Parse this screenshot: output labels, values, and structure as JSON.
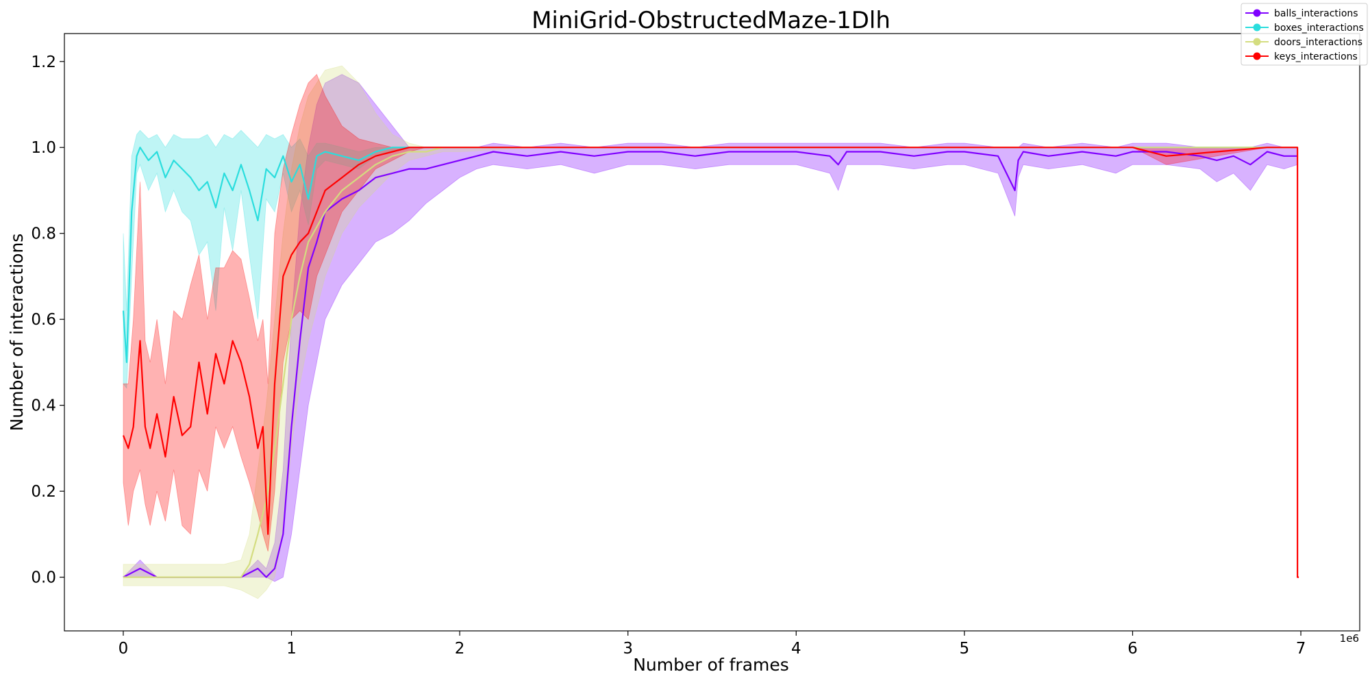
{
  "chart_data": {
    "type": "line",
    "title": "MiniGrid-ObstructedMaze-1Dlh",
    "xlabel": "Number of frames",
    "ylabel": "Number of interactions",
    "x_offset_text": "1e6",
    "xlim": [
      -0.35,
      7.35
    ],
    "ylim": [
      -0.125,
      1.265
    ],
    "x_ticks": [
      0,
      1,
      2,
      3,
      4,
      5,
      6,
      7
    ],
    "x_tick_labels": [
      "0",
      "1",
      "2",
      "3",
      "4",
      "5",
      "6",
      "7"
    ],
    "y_ticks": [
      0.0,
      0.2,
      0.4,
      0.6,
      0.8,
      1.0,
      1.2
    ],
    "y_tick_labels": [
      "0.0",
      "0.2",
      "0.4",
      "0.6",
      "0.8",
      "1.0",
      "1.2"
    ],
    "x_scale_note": "x values in units of 1e6 frames",
    "legend_position": "top-right",
    "grid": false,
    "series": [
      {
        "name": "balls_interactions",
        "color": "#7f00ff",
        "x": [
          0,
          0.05,
          0.1,
          0.2,
          0.3,
          0.4,
          0.5,
          0.6,
          0.7,
          0.8,
          0.85,
          0.9,
          0.95,
          1.0,
          1.05,
          1.1,
          1.15,
          1.2,
          1.3,
          1.4,
          1.5,
          1.6,
          1.7,
          1.8,
          1.9,
          2.0,
          2.1,
          2.2,
          2.4,
          2.6,
          2.8,
          3.0,
          3.2,
          3.4,
          3.6,
          3.8,
          4.0,
          4.2,
          4.25,
          4.3,
          4.5,
          4.7,
          4.9,
          5.0,
          5.2,
          5.3,
          5.32,
          5.35,
          5.5,
          5.7,
          5.9,
          6.0,
          6.2,
          6.4,
          6.5,
          6.6,
          6.7,
          6.8,
          6.9,
          6.98
        ],
        "y": [
          0.0,
          0.01,
          0.02,
          0.0,
          0.0,
          0.0,
          0.0,
          0.0,
          0.0,
          0.02,
          0.0,
          0.02,
          0.1,
          0.35,
          0.55,
          0.72,
          0.78,
          0.85,
          0.88,
          0.9,
          0.93,
          0.94,
          0.95,
          0.95,
          0.96,
          0.97,
          0.98,
          0.99,
          0.98,
          0.99,
          0.98,
          0.99,
          0.99,
          0.98,
          0.99,
          0.99,
          0.99,
          0.98,
          0.96,
          0.99,
          0.99,
          0.98,
          0.99,
          0.99,
          0.98,
          0.9,
          0.97,
          0.99,
          0.98,
          0.99,
          0.98,
          0.99,
          0.99,
          0.98,
          0.97,
          0.98,
          0.96,
          0.99,
          0.98,
          0.98
        ],
        "lower": [
          0.0,
          0.0,
          0.0,
          0.0,
          0.0,
          0.0,
          0.0,
          0.0,
          0.0,
          0.0,
          0.0,
          -0.01,
          0.0,
          0.1,
          0.25,
          0.4,
          0.5,
          0.6,
          0.68,
          0.73,
          0.78,
          0.8,
          0.83,
          0.87,
          0.9,
          0.93,
          0.95,
          0.96,
          0.95,
          0.96,
          0.94,
          0.96,
          0.96,
          0.95,
          0.96,
          0.96,
          0.96,
          0.94,
          0.9,
          0.96,
          0.96,
          0.95,
          0.96,
          0.96,
          0.94,
          0.84,
          0.93,
          0.96,
          0.95,
          0.96,
          0.94,
          0.96,
          0.96,
          0.95,
          0.92,
          0.94,
          0.9,
          0.96,
          0.95,
          0.96
        ],
        "upper": [
          0.0,
          0.02,
          0.04,
          0.0,
          0.0,
          0.0,
          0.0,
          0.0,
          0.0,
          0.04,
          0.02,
          0.08,
          0.25,
          0.6,
          0.85,
          1.0,
          1.1,
          1.15,
          1.17,
          1.15,
          1.1,
          1.05,
          1.0,
          1.0,
          1.0,
          1.0,
          1.0,
          1.01,
          1.0,
          1.01,
          1.0,
          1.01,
          1.01,
          1.0,
          1.01,
          1.01,
          1.01,
          1.01,
          1.01,
          1.01,
          1.01,
          1.0,
          1.01,
          1.01,
          1.0,
          1.0,
          1.0,
          1.01,
          1.0,
          1.01,
          1.0,
          1.01,
          1.01,
          1.0,
          1.0,
          1.0,
          1.0,
          1.01,
          1.0,
          1.0
        ]
      },
      {
        "name": "boxes_interactions",
        "color": "#2adddd",
        "x": [
          0,
          0.02,
          0.05,
          0.08,
          0.1,
          0.15,
          0.2,
          0.25,
          0.3,
          0.35,
          0.4,
          0.45,
          0.5,
          0.55,
          0.6,
          0.65,
          0.7,
          0.75,
          0.8,
          0.85,
          0.9,
          0.95,
          1.0,
          1.05,
          1.1,
          1.15,
          1.2,
          1.3,
          1.4,
          1.5,
          1.6,
          1.7,
          1.8,
          1.9,
          2.0,
          2.5,
          3.0,
          4.0,
          5.0,
          6.0,
          6.98
        ],
        "y": [
          0.62,
          0.5,
          0.85,
          0.98,
          1.0,
          0.97,
          0.99,
          0.93,
          0.97,
          0.95,
          0.93,
          0.9,
          0.92,
          0.86,
          0.94,
          0.9,
          0.96,
          0.9,
          0.83,
          0.95,
          0.93,
          0.98,
          0.92,
          0.96,
          0.88,
          0.98,
          0.99,
          0.98,
          0.97,
          0.99,
          1.0,
          1.0,
          1.0,
          1.0,
          1.0,
          1.0,
          1.0,
          1.0,
          1.0,
          1.0,
          1.0
        ],
        "lower": [
          0.45,
          0.44,
          0.7,
          0.94,
          0.96,
          0.9,
          0.94,
          0.85,
          0.9,
          0.85,
          0.83,
          0.75,
          0.78,
          0.62,
          0.86,
          0.76,
          0.9,
          0.75,
          0.6,
          0.88,
          0.85,
          0.94,
          0.85,
          0.9,
          0.82,
          0.95,
          0.97,
          0.96,
          0.95,
          0.98,
          0.99,
          1.0,
          1.0,
          1.0,
          1.0,
          1.0,
          1.0,
          1.0,
          1.0,
          1.0,
          1.0
        ],
        "upper": [
          0.8,
          0.62,
          0.98,
          1.03,
          1.04,
          1.02,
          1.03,
          1.0,
          1.03,
          1.02,
          1.02,
          1.02,
          1.03,
          1.0,
          1.03,
          1.02,
          1.04,
          1.02,
          1.0,
          1.03,
          1.02,
          1.03,
          1.0,
          1.02,
          0.98,
          1.01,
          1.01,
          1.0,
          0.99,
          1.0,
          1.0,
          1.0,
          1.0,
          1.0,
          1.0,
          1.0,
          1.0,
          1.0,
          1.0,
          1.0,
          1.0
        ]
      },
      {
        "name": "doors_interactions",
        "color": "#d4dd80",
        "x": [
          0,
          0.1,
          0.2,
          0.3,
          0.4,
          0.5,
          0.6,
          0.7,
          0.75,
          0.8,
          0.85,
          0.9,
          0.95,
          1.0,
          1.05,
          1.1,
          1.2,
          1.3,
          1.4,
          1.5,
          1.6,
          1.7,
          1.8,
          1.9,
          2.0,
          2.5,
          3.0,
          4.0,
          5.0,
          6.0,
          6.98
        ],
        "y": [
          0.0,
          0.0,
          0.0,
          0.0,
          0.0,
          0.0,
          0.0,
          0.0,
          0.03,
          0.1,
          0.18,
          0.3,
          0.45,
          0.6,
          0.7,
          0.78,
          0.85,
          0.9,
          0.93,
          0.96,
          0.98,
          0.99,
          0.99,
          1.0,
          1.0,
          1.0,
          1.0,
          1.0,
          1.0,
          1.0,
          1.0
        ],
        "lower": [
          -0.02,
          -0.02,
          -0.02,
          -0.02,
          -0.02,
          -0.02,
          -0.02,
          -0.03,
          -0.04,
          -0.05,
          -0.03,
          0.0,
          0.1,
          0.3,
          0.45,
          0.55,
          0.7,
          0.8,
          0.86,
          0.9,
          0.94,
          0.97,
          0.98,
          0.99,
          0.99,
          1.0,
          1.0,
          1.0,
          1.0,
          1.0,
          1.0
        ],
        "upper": [
          0.03,
          0.03,
          0.03,
          0.03,
          0.03,
          0.03,
          0.03,
          0.04,
          0.1,
          0.25,
          0.4,
          0.6,
          0.8,
          0.95,
          1.05,
          1.12,
          1.18,
          1.19,
          1.15,
          1.08,
          1.03,
          1.01,
          1.0,
          1.0,
          1.0,
          1.0,
          1.0,
          1.0,
          1.0,
          1.0,
          1.0
        ]
      },
      {
        "name": "keys_interactions",
        "color": "#ff0000",
        "x": [
          0,
          0.03,
          0.06,
          0.1,
          0.13,
          0.16,
          0.2,
          0.25,
          0.3,
          0.35,
          0.4,
          0.45,
          0.5,
          0.55,
          0.6,
          0.65,
          0.7,
          0.75,
          0.8,
          0.83,
          0.86,
          0.9,
          0.95,
          1.0,
          1.05,
          1.1,
          1.15,
          1.2,
          1.3,
          1.4,
          1.5,
          1.6,
          1.7,
          1.8,
          2.0,
          2.5,
          3.0,
          4.0,
          5.0,
          6.0,
          6.2,
          6.5,
          6.8,
          6.98
        ],
        "y": [
          0.33,
          0.3,
          0.35,
          0.55,
          0.35,
          0.3,
          0.38,
          0.28,
          0.42,
          0.33,
          0.35,
          0.5,
          0.38,
          0.52,
          0.45,
          0.55,
          0.5,
          0.42,
          0.3,
          0.35,
          0.1,
          0.45,
          0.7,
          0.75,
          0.78,
          0.8,
          0.85,
          0.9,
          0.93,
          0.96,
          0.98,
          0.99,
          1.0,
          1.0,
          1.0,
          1.0,
          1.0,
          1.0,
          1.0,
          1.0,
          0.98,
          0.99,
          1.0,
          1.0
        ],
        "lower": [
          0.22,
          0.12,
          0.2,
          0.25,
          0.17,
          0.12,
          0.2,
          0.13,
          0.25,
          0.12,
          0.1,
          0.25,
          0.2,
          0.35,
          0.3,
          0.35,
          0.28,
          0.22,
          0.15,
          0.1,
          0.06,
          0.2,
          0.5,
          0.6,
          0.62,
          0.6,
          0.7,
          0.75,
          0.85,
          0.9,
          0.95,
          0.97,
          0.99,
          1.0,
          1.0,
          1.0,
          1.0,
          1.0,
          1.0,
          1.0,
          0.96,
          0.98,
          1.0,
          1.0
        ],
        "upper": [
          0.45,
          0.45,
          0.6,
          0.92,
          0.55,
          0.5,
          0.6,
          0.45,
          0.62,
          0.6,
          0.68,
          0.75,
          0.6,
          0.72,
          0.72,
          0.76,
          0.74,
          0.65,
          0.55,
          0.6,
          0.45,
          0.8,
          0.95,
          1.03,
          1.1,
          1.15,
          1.17,
          1.12,
          1.05,
          1.02,
          1.01,
          1.0,
          1.0,
          1.0,
          1.0,
          1.0,
          1.0,
          1.0,
          1.0,
          1.0,
          1.0,
          1.0,
          1.0,
          1.0
        ],
        "end_drop": [
          6.98,
          0.0
        ]
      }
    ]
  }
}
